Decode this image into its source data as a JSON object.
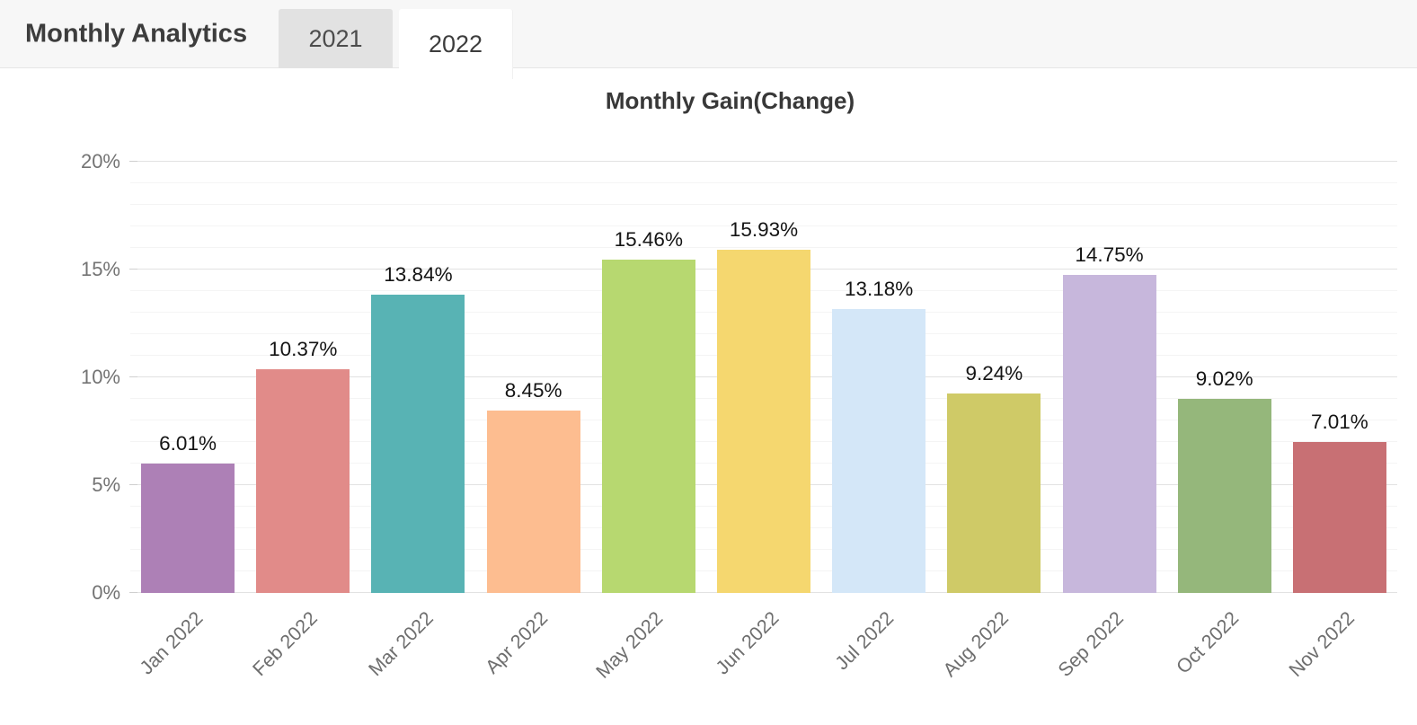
{
  "header": {
    "title": "Monthly Analytics",
    "tabs": [
      {
        "label": "2021",
        "active": false
      },
      {
        "label": "2022",
        "active": true
      }
    ]
  },
  "theme": {
    "header-bg": "#f7f7f7",
    "tab-inactive-bg": "#e2e2e2",
    "grid-major": "#e2e2e2",
    "grid-minor": "#f4f4f4",
    "axis-text": "#737373"
  },
  "chart_data": {
    "type": "bar",
    "title": "Monthly Gain(Change)",
    "categories": [
      "Jan 2022",
      "Feb 2022",
      "Mar 2022",
      "Apr 2022",
      "May 2022",
      "Jun 2022",
      "Jul 2022",
      "Aug 2022",
      "Sep 2022",
      "Oct 2022",
      "Nov 2022"
    ],
    "values": [
      6.01,
      10.37,
      13.84,
      8.45,
      15.46,
      15.93,
      13.18,
      9.24,
      14.75,
      9.02,
      7.01
    ],
    "data_labels": [
      "6.01%",
      "10.37%",
      "13.84%",
      "8.45%",
      "15.46%",
      "15.93%",
      "13.18%",
      "9.24%",
      "14.75%",
      "9.02%",
      "7.01%"
    ],
    "bar_colors": [
      "#ad80b6",
      "#e18b89",
      "#58b3b4",
      "#fdbd90",
      "#b7d870",
      "#f5d76f",
      "#d4e7f8",
      "#cfca67",
      "#c7b7dc",
      "#95b77b",
      "#c87074"
    ],
    "xlabel": "",
    "ylabel": "",
    "ylim": [
      0,
      20
    ],
    "y_major_step": 5,
    "y_minor_step": 1,
    "y_ticks": [
      {
        "value": 0,
        "label": "0%"
      },
      {
        "value": 5,
        "label": "5%"
      },
      {
        "value": 10,
        "label": "10%"
      },
      {
        "value": 15,
        "label": "15%"
      },
      {
        "value": 20,
        "label": "20%"
      }
    ],
    "x_tick_rotation": -45,
    "grid": true,
    "legend": false
  }
}
